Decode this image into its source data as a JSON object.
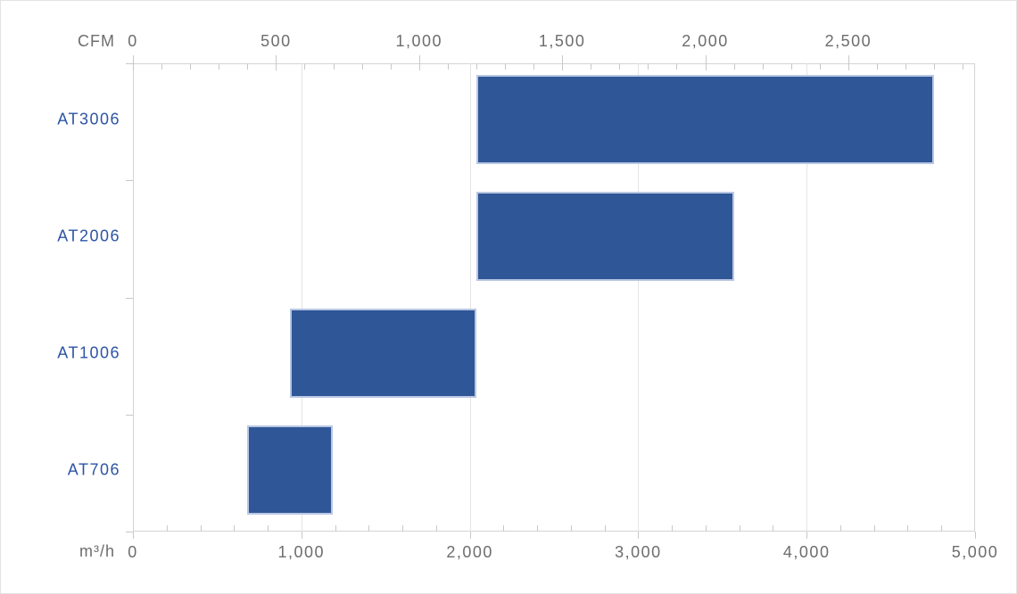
{
  "chart_data": {
    "type": "bar",
    "subtype": "horizontal-range",
    "title": "",
    "categories": [
      "AT3006",
      "AT2006",
      "AT1006",
      "AT706"
    ],
    "series": [
      {
        "name": "AT3006",
        "range_m3h": [
          2039,
          4757
        ],
        "range_cfm": [
          1200,
          2800
        ]
      },
      {
        "name": "AT2006",
        "range_m3h": [
          2039,
          3568
        ],
        "range_cfm": [
          1200,
          2100
        ]
      },
      {
        "name": "AT1006",
        "range_m3h": [
          934,
          2039
        ],
        "range_cfm": [
          550,
          1200
        ]
      },
      {
        "name": "AT706",
        "range_m3h": [
          680,
          1189
        ],
        "range_cfm": [
          400,
          700
        ]
      }
    ],
    "top_axis": {
      "unit_label": "CFM",
      "min": 0,
      "major_ticks": [
        0,
        500,
        1000,
        1500,
        2000,
        2500
      ],
      "minor_tick_step": 100
    },
    "bottom_axis": {
      "unit_label": "m³/h",
      "min": 0,
      "max": 5000,
      "major_ticks": [
        0,
        1000,
        2000,
        3000,
        4000,
        5000
      ],
      "minor_tick_step": 200
    },
    "cfm_to_m3h": 1.699,
    "grid": true,
    "legend": "none",
    "colors": {
      "bar_fill": "#2f5697",
      "bar_border": "#b9c7e3",
      "category_text": "#2d55a5",
      "axis_text": "#6d6d6d",
      "gridline": "#e4e4e4",
      "axis_line": "#d4d4d4",
      "tick": "#c8c8c8"
    }
  }
}
